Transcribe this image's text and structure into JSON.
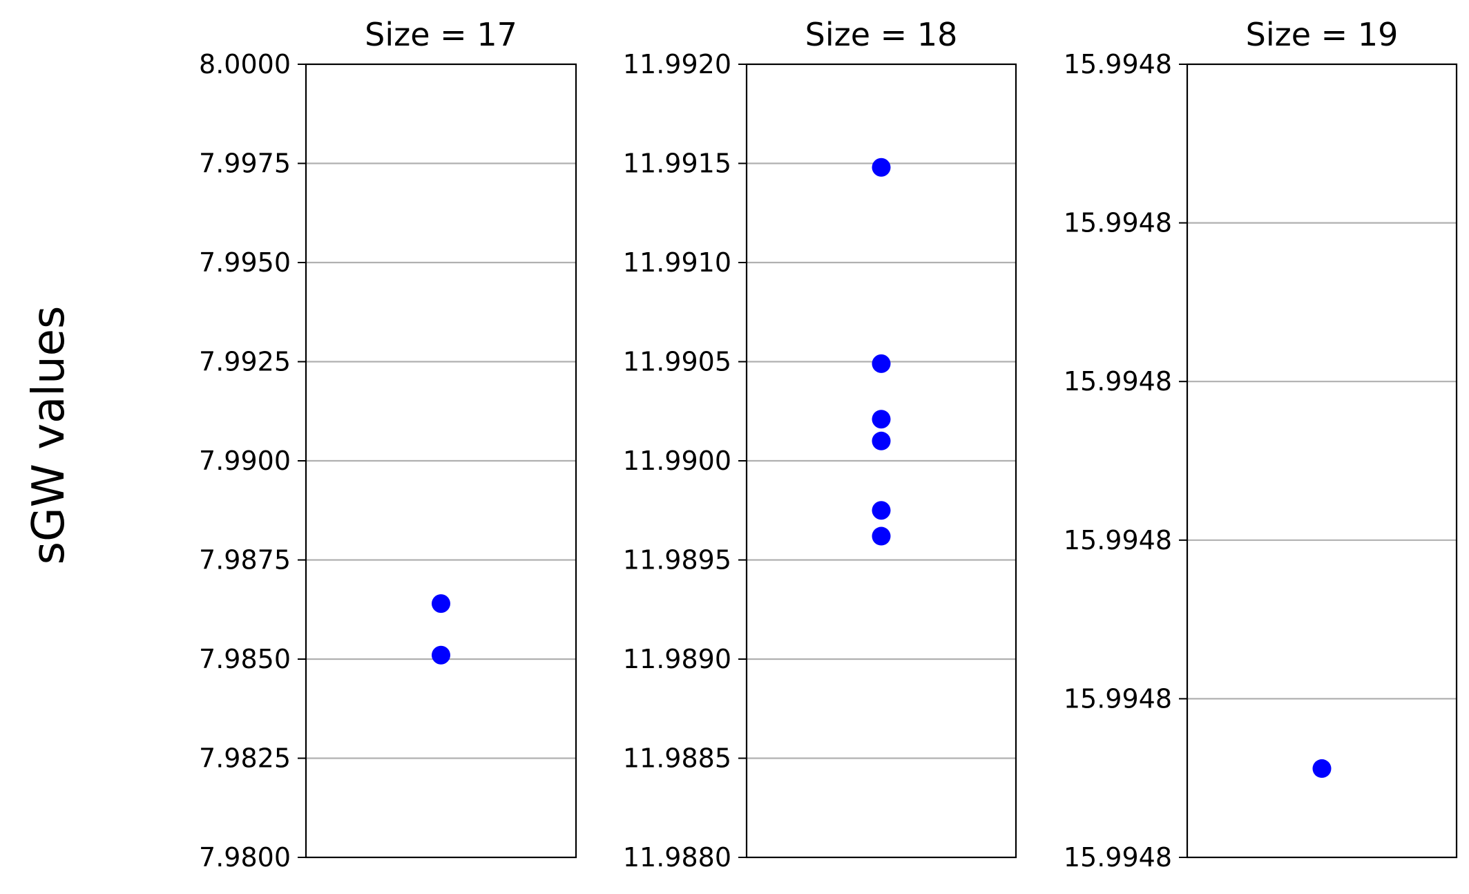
{
  "figure": {
    "ylabel": "sGW values"
  },
  "chart_data": [
    {
      "type": "scatter",
      "title": "Size = 17",
      "xlabel": "",
      "ylabel": "sGW values",
      "ylim": [
        7.98,
        8.0
      ],
      "yticks": [
        7.98,
        7.9825,
        7.985,
        7.9875,
        7.99,
        7.9925,
        7.995,
        7.9975,
        8.0
      ],
      "ytick_labels": [
        "7.9800",
        "7.9825",
        "7.9850",
        "7.9875",
        "7.9900",
        "7.9925",
        "7.9950",
        "7.9975",
        "8.0000"
      ],
      "grid": "y",
      "marker_color": "#0000ff",
      "values": [
        7.9864,
        7.9851
      ]
    },
    {
      "type": "scatter",
      "title": "Size = 18",
      "xlabel": "",
      "ylabel": "",
      "ylim": [
        11.988,
        11.992
      ],
      "yticks": [
        11.988,
        11.9885,
        11.989,
        11.9895,
        11.99,
        11.9905,
        11.991,
        11.9915,
        11.992
      ],
      "ytick_labels": [
        "11.9880",
        "11.9885",
        "11.9890",
        "11.9895",
        "11.9900",
        "11.9905",
        "11.9910",
        "11.9915",
        "11.9920"
      ],
      "grid": "y",
      "marker_color": "#0000ff",
      "values": [
        11.99148,
        11.99049,
        11.99021,
        11.9901,
        11.98975,
        11.98962
      ]
    },
    {
      "type": "scatter",
      "title": "Size = 19",
      "xlabel": "",
      "ylabel": "",
      "ylim": [
        0,
        5
      ],
      "yticks": [
        0,
        1,
        2,
        3,
        4,
        5
      ],
      "ytick_labels": [
        "15.9948",
        "15.9948",
        "15.9948",
        "15.9948",
        "15.9948",
        "15.9948"
      ],
      "grid": "y",
      "marker_color": "#0000ff",
      "values": [
        0.56
      ]
    }
  ]
}
